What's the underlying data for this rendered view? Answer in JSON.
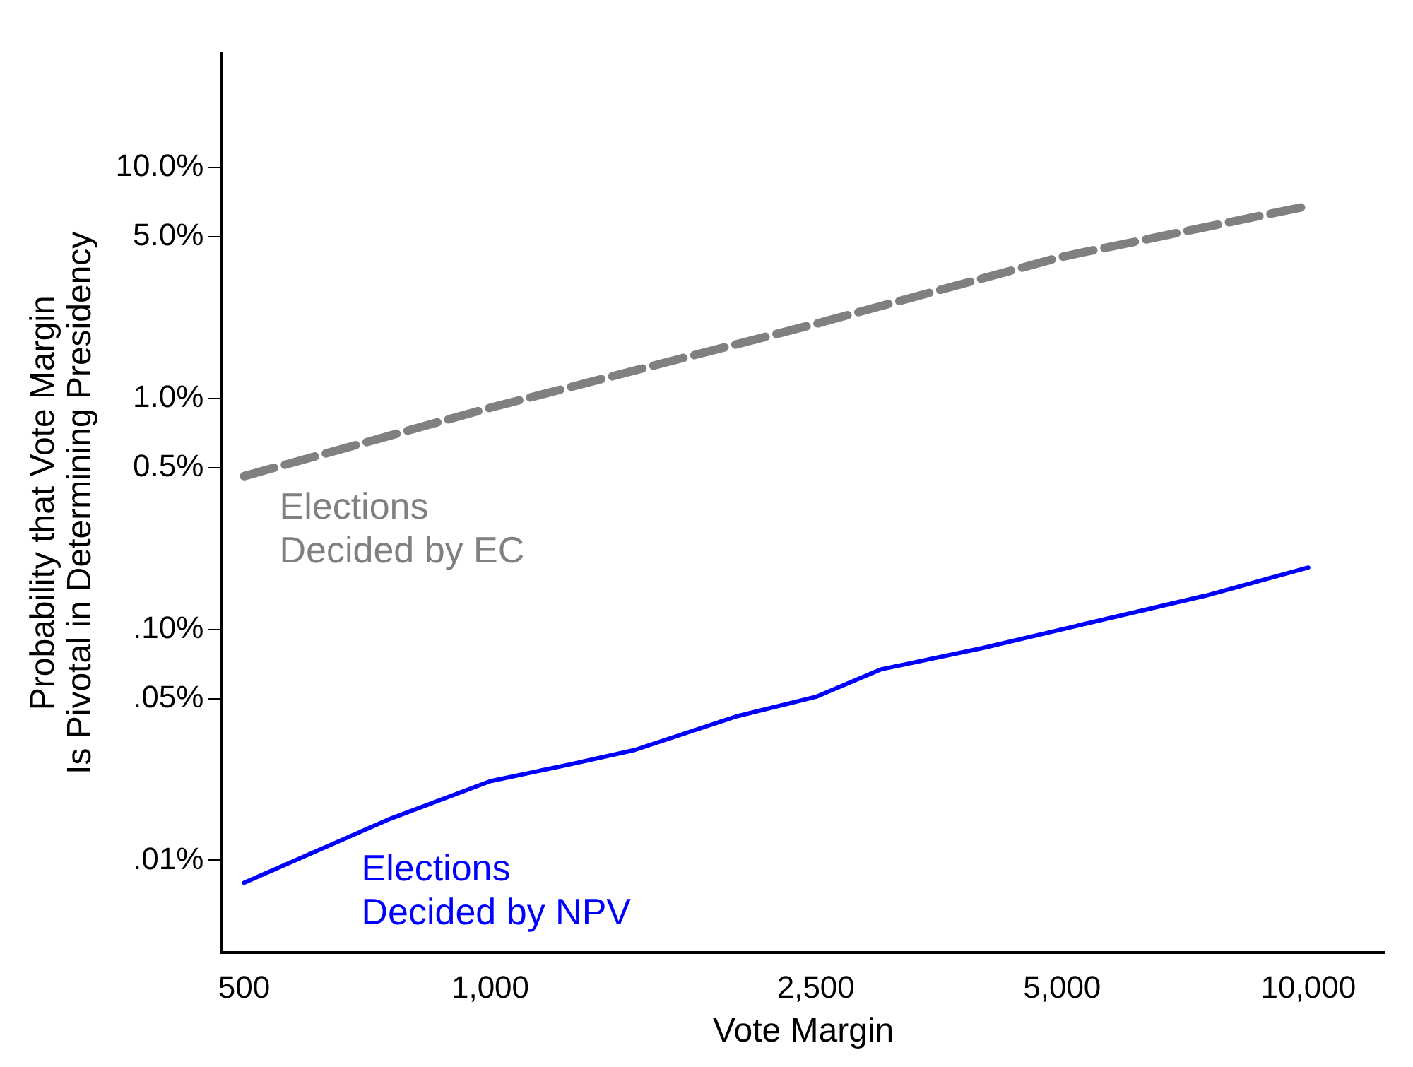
{
  "chart_data": {
    "type": "line",
    "xlabel": "Vote Margin",
    "ylabel": "Probability that Vote Margin\nIs Pivotal in Determining Presidency",
    "log": "xy",
    "grid": false,
    "legend": false,
    "marker": "none",
    "xlim": [
      470,
      12400
    ],
    "ylim": [
      0.004,
      31
    ],
    "xticks": [
      {
        "value": 500,
        "label": "500"
      },
      {
        "value": 1000,
        "label": "1,000"
      },
      {
        "value": 2500,
        "label": "2,500"
      },
      {
        "value": 5000,
        "label": "5,000"
      },
      {
        "value": 10000,
        "label": "10,000"
      }
    ],
    "yticks": [
      {
        "value": 0.01,
        "label": ".01%"
      },
      {
        "value": 0.05,
        "label": ".05%"
      },
      {
        "value": 0.1,
        "label": ".10%"
      },
      {
        "value": 0.5,
        "label": "0.5%"
      },
      {
        "value": 1,
        "label": "1.0%"
      },
      {
        "value": 5,
        "label": "5.0%"
      },
      {
        "value": 10,
        "label": "10.0%"
      }
    ],
    "series": [
      {
        "name": "Elections\nDecided by EC",
        "color": "#808080",
        "line_style": "dashed",
        "x": [
          500,
          1000,
          2500,
          5000,
          10000
        ],
        "values": [
          0.46,
          0.91,
          2.1,
          4.1,
          6.8
        ]
      },
      {
        "name": "Elections\nDecided by NPV",
        "color": "#0000ff",
        "line_style": "solid",
        "x": [
          500,
          750,
          1000,
          1250,
          1500,
          2000,
          2500,
          3000,
          4000,
          5000,
          7500,
          10000
        ],
        "values": [
          0.008,
          0.015,
          0.022,
          0.026,
          0.03,
          0.042,
          0.051,
          0.067,
          0.083,
          0.1,
          0.14,
          0.185
        ]
      }
    ]
  }
}
